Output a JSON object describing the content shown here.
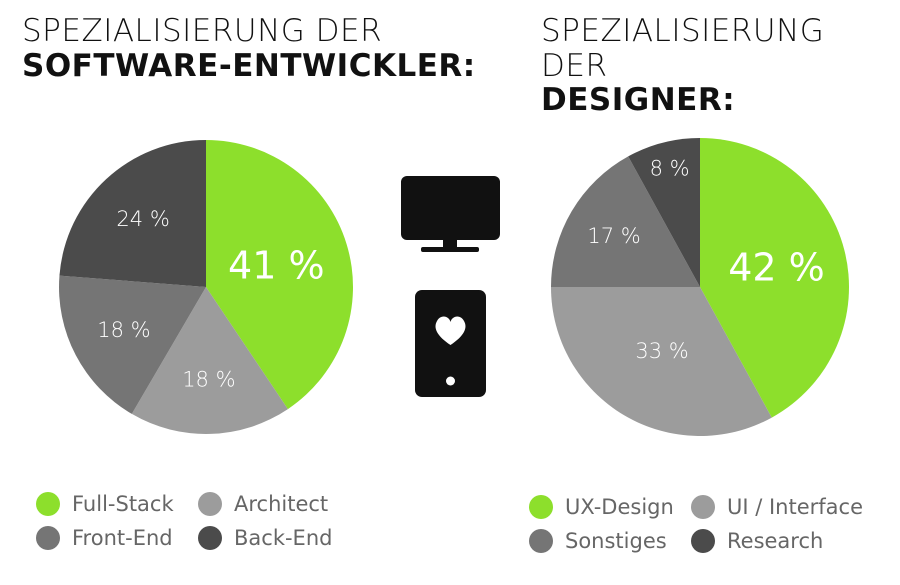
{
  "left_panel": {
    "title_line1": "SPEZIALISIERUNG DER",
    "title_line2": "SOFTWARE-ENTWICKLER:"
  },
  "right_panel": {
    "title_line1": "SPEZIALISIERUNG DER",
    "title_line2": "DESIGNER:"
  },
  "icons": [
    "monitor-icon",
    "smartphone-heart-icon"
  ],
  "chart_data": [
    {
      "type": "pie",
      "labels": [
        "Full-Stack",
        "Architect",
        "Front-End",
        "Back-End"
      ],
      "values": [
        41,
        18,
        18,
        24
      ],
      "data_labels": [
        "41 %",
        "18 %",
        "18 %",
        "24 %"
      ],
      "colors": [
        "#8ddf2c",
        "#9c9c9c",
        "#757575",
        "#4b4b4b"
      ],
      "legend_position": "bottom"
    },
    {
      "type": "pie",
      "labels": [
        "UX-Design",
        "UI / Interface",
        "Sonstiges",
        "Research"
      ],
      "values": [
        42,
        33,
        17,
        8
      ],
      "data_labels": [
        "42 %",
        "33 %",
        "17 %",
        "8 %"
      ],
      "colors": [
        "#8ddf2c",
        "#9c9c9c",
        "#757575",
        "#4b4b4b"
      ],
      "legend_position": "bottom"
    }
  ]
}
